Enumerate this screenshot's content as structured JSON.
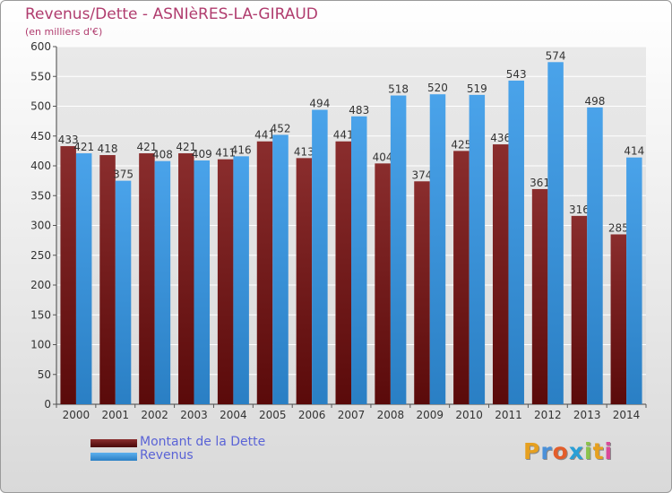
{
  "header": {
    "title": "Revenus/Dette - ASNIèRES-LA-GIRAUD",
    "subtitle": "(en milliers d'€)"
  },
  "colors": {
    "dette": "#7a1e22",
    "revenus": "#3a97e0",
    "title": "#b03c6e"
  },
  "legend": {
    "items": [
      {
        "label": "Montant de la Dette"
      },
      {
        "label": "Revenus"
      }
    ]
  },
  "logo": {
    "text": "Proxiti"
  },
  "chart_data": {
    "type": "bar",
    "title": "Revenus/Dette - ASNIèRES-LA-GIRAUD",
    "subtitle": "(en milliers d'€)",
    "categories": [
      "2000",
      "2001",
      "2002",
      "2003",
      "2004",
      "2005",
      "2006",
      "2007",
      "2008",
      "2009",
      "2010",
      "2011",
      "2012",
      "2013",
      "2014"
    ],
    "series": [
      {
        "name": "Montant de la Dette",
        "values": [
          433,
          418,
          421,
          421,
          411,
          441,
          413,
          441,
          404,
          374,
          425,
          436,
          361,
          316,
          285
        ]
      },
      {
        "name": "Revenus",
        "values": [
          421,
          375,
          408,
          409,
          416,
          452,
          494,
          483,
          518,
          520,
          519,
          543,
          574,
          498,
          414
        ]
      }
    ],
    "ylim": [
      0,
      600
    ],
    "yticks": [
      0,
      50,
      100,
      150,
      200,
      250,
      300,
      350,
      400,
      450,
      500,
      550,
      600
    ],
    "grid": true,
    "legend_position": "bottom-left"
  }
}
